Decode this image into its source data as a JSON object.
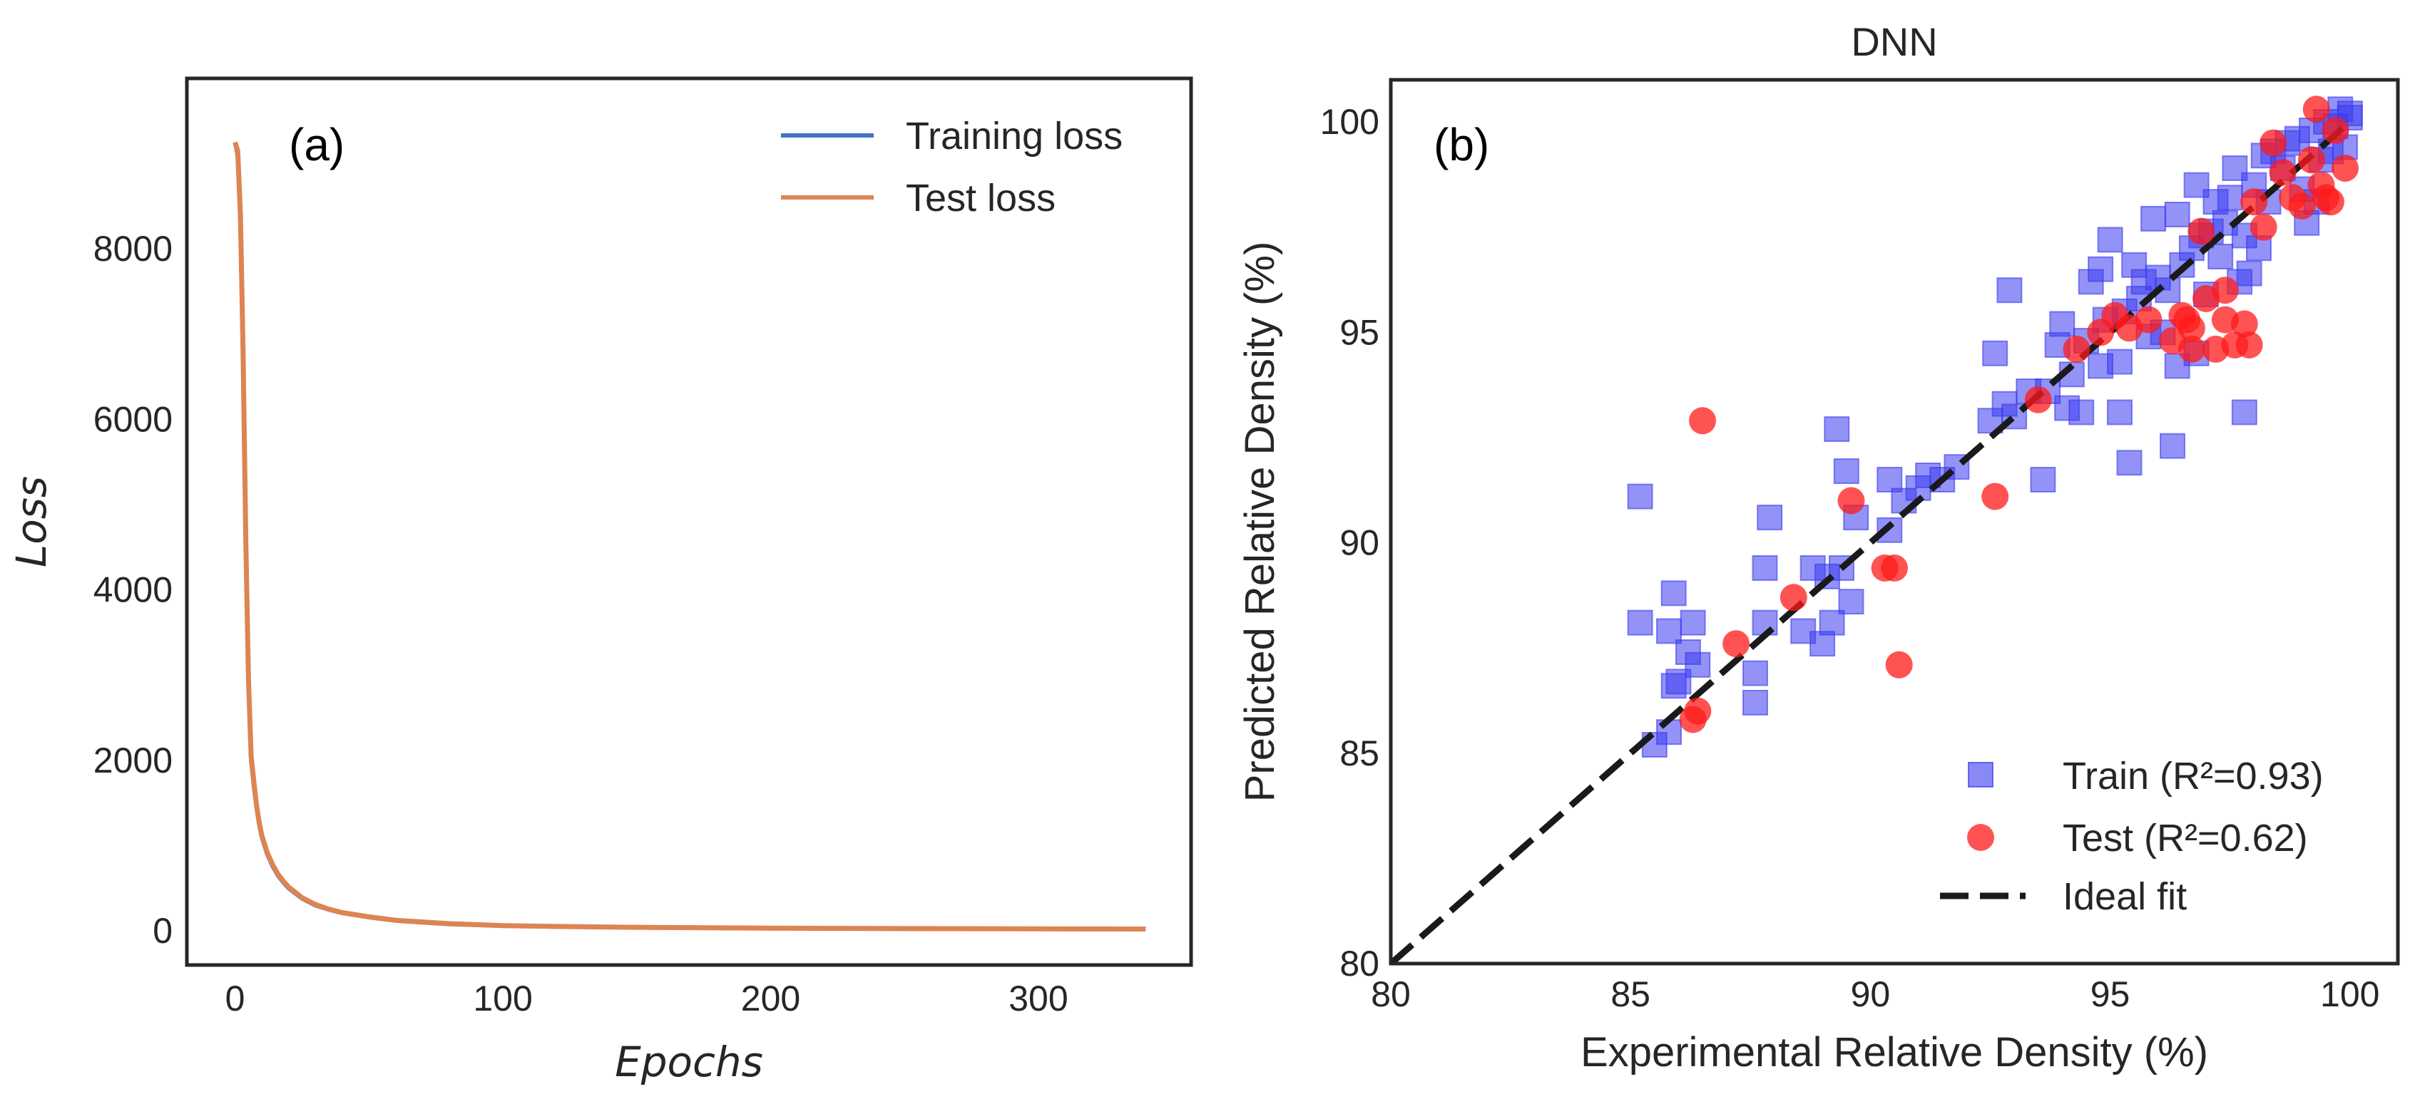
{
  "chart_data": [
    {
      "type": "line",
      "panel_label": "(a)",
      "xlabel": "Epochs",
      "ylabel": "Loss",
      "xlim": [
        -18,
        357
      ],
      "ylim": [
        -400,
        10000
      ],
      "xticks": [
        0,
        100,
        200,
        300
      ],
      "yticks": [
        0,
        2000,
        4000,
        6000,
        8000
      ],
      "grid": false,
      "legend_position": "top-right",
      "series": [
        {
          "name": "Training loss",
          "color": "#4472c4",
          "x": [
            0,
            1,
            2,
            3,
            4,
            5,
            6,
            7,
            8,
            9,
            10,
            12,
            14,
            16,
            18,
            20,
            25,
            30,
            35,
            40,
            50,
            60,
            70,
            80,
            100,
            120,
            150,
            200,
            250,
            300,
            340
          ],
          "y": [
            9250,
            9100,
            8300,
            6700,
            4500,
            2900,
            2000,
            1700,
            1450,
            1250,
            1100,
            900,
            760,
            650,
            570,
            500,
            380,
            300,
            250,
            210,
            160,
            120,
            100,
            80,
            60,
            50,
            40,
            30,
            25,
            22,
            20
          ]
        },
        {
          "name": "Test loss",
          "color": "#dd8452",
          "x": [
            0,
            1,
            2,
            3,
            4,
            5,
            6,
            7,
            8,
            9,
            10,
            12,
            14,
            16,
            18,
            20,
            25,
            30,
            35,
            40,
            50,
            60,
            70,
            80,
            100,
            120,
            150,
            200,
            250,
            300,
            340
          ],
          "y": [
            9250,
            9150,
            8400,
            6800,
            4600,
            2950,
            2050,
            1750,
            1480,
            1270,
            1120,
            920,
            780,
            665,
            585,
            515,
            390,
            310,
            255,
            215,
            165,
            125,
            105,
            85,
            62,
            52,
            42,
            32,
            27,
            24,
            22
          ]
        }
      ]
    },
    {
      "type": "scatter",
      "panel_label": "(b)",
      "title": "DNN",
      "xlabel": "Experimental Relative Density (%)",
      "ylabel": "Predicted Relative Density (%)",
      "xlim": [
        80,
        101
      ],
      "ylim": [
        80,
        101
      ],
      "xticks": [
        80,
        85,
        90,
        95,
        100
      ],
      "yticks": [
        80,
        85,
        90,
        95,
        100
      ],
      "grid": false,
      "legend_position": "bottom-right",
      "series": [
        {
          "name": "Train (R²=0.93)",
          "marker": "square",
          "color": "#3b3bf0",
          "points": [
            [
              85.2,
              91.1
            ],
            [
              85.2,
              88.1
            ],
            [
              85.5,
              85.2
            ],
            [
              85.8,
              85.5
            ],
            [
              85.8,
              87.9
            ],
            [
              85.9,
              88.8
            ],
            [
              85.9,
              86.6
            ],
            [
              86.0,
              86.7
            ],
            [
              86.2,
              87.4
            ],
            [
              86.3,
              88.1
            ],
            [
              86.4,
              87.1
            ],
            [
              87.6,
              86.9
            ],
            [
              87.6,
              86.2
            ],
            [
              87.8,
              89.4
            ],
            [
              87.8,
              88.1
            ],
            [
              87.9,
              90.6
            ],
            [
              88.6,
              87.9
            ],
            [
              88.8,
              89.4
            ],
            [
              89.0,
              87.6
            ],
            [
              89.1,
              89.2
            ],
            [
              89.2,
              88.1
            ],
            [
              89.3,
              92.7
            ],
            [
              89.4,
              89.4
            ],
            [
              89.5,
              91.7
            ],
            [
              89.6,
              88.6
            ],
            [
              89.7,
              90.6
            ],
            [
              90.4,
              91.5
            ],
            [
              90.4,
              90.3
            ],
            [
              90.7,
              91.0
            ],
            [
              91.0,
              91.3
            ],
            [
              91.2,
              91.6
            ],
            [
              91.5,
              91.5
            ],
            [
              91.8,
              91.8
            ],
            [
              92.5,
              92.9
            ],
            [
              92.6,
              94.5
            ],
            [
              92.8,
              93.3
            ],
            [
              92.9,
              96.0
            ],
            [
              93.0,
              93.0
            ],
            [
              93.3,
              93.6
            ],
            [
              93.6,
              91.5
            ],
            [
              93.7,
              93.6
            ],
            [
              93.9,
              94.7
            ],
            [
              94.0,
              95.2
            ],
            [
              94.1,
              93.2
            ],
            [
              94.2,
              94.0
            ],
            [
              94.4,
              93.1
            ],
            [
              94.5,
              94.8
            ],
            [
              94.6,
              96.2
            ],
            [
              94.8,
              96.5
            ],
            [
              94.8,
              94.2
            ],
            [
              94.9,
              95.3
            ],
            [
              95.0,
              97.2
            ],
            [
              95.2,
              93.1
            ],
            [
              95.2,
              94.3
            ],
            [
              95.3,
              95.5
            ],
            [
              95.4,
              91.9
            ],
            [
              95.5,
              96.6
            ],
            [
              95.6,
              95.8
            ],
            [
              95.7,
              96.2
            ],
            [
              95.8,
              94.9
            ],
            [
              95.9,
              97.7
            ],
            [
              96.0,
              96.3
            ],
            [
              96.1,
              95.0
            ],
            [
              96.2,
              96.0
            ],
            [
              96.3,
              92.3
            ],
            [
              96.4,
              94.2
            ],
            [
              96.4,
              97.8
            ],
            [
              96.5,
              96.6
            ],
            [
              96.7,
              97.0
            ],
            [
              96.8,
              98.5
            ],
            [
              96.8,
              94.5
            ],
            [
              96.9,
              97.3
            ],
            [
              97.0,
              95.9
            ],
            [
              97.1,
              97.4
            ],
            [
              97.2,
              98.1
            ],
            [
              97.3,
              96.8
            ],
            [
              97.4,
              97.6
            ],
            [
              97.5,
              98.2
            ],
            [
              97.6,
              98.9
            ],
            [
              97.7,
              96.2
            ],
            [
              97.8,
              97.3
            ],
            [
              97.8,
              93.1
            ],
            [
              97.9,
              96.4
            ],
            [
              98.0,
              98.5
            ],
            [
              98.1,
              97.0
            ],
            [
              98.2,
              99.2
            ],
            [
              98.3,
              98.1
            ],
            [
              98.4,
              99.3
            ],
            [
              98.6,
              98.9
            ],
            [
              98.7,
              99.5
            ],
            [
              98.9,
              99.6
            ],
            [
              99.0,
              98.4
            ],
            [
              99.1,
              97.6
            ],
            [
              99.2,
              99.8
            ],
            [
              99.3,
              98.1
            ],
            [
              99.4,
              99.1
            ],
            [
              99.5,
              100.0
            ],
            [
              99.6,
              99.3
            ],
            [
              99.7,
              99.9
            ],
            [
              99.8,
              100.3
            ],
            [
              99.9,
              99.4
            ],
            [
              100.0,
              100.1
            ],
            [
              100.0,
              100.2
            ]
          ]
        },
        {
          "name": "Test (R²=0.62)",
          "marker": "circle",
          "color": "#ff1a1a",
          "points": [
            [
              86.3,
              85.8
            ],
            [
              86.4,
              86.0
            ],
            [
              86.5,
              92.9
            ],
            [
              87.2,
              87.6
            ],
            [
              88.4,
              88.7
            ],
            [
              89.6,
              91.0
            ],
            [
              90.3,
              89.4
            ],
            [
              90.5,
              89.4
            ],
            [
              90.6,
              87.1
            ],
            [
              92.6,
              91.1
            ],
            [
              93.5,
              93.4
            ],
            [
              94.3,
              94.6
            ],
            [
              94.8,
              95.0
            ],
            [
              95.1,
              95.4
            ],
            [
              95.4,
              95.1
            ],
            [
              95.8,
              95.3
            ],
            [
              96.3,
              94.8
            ],
            [
              96.5,
              95.4
            ],
            [
              96.6,
              95.3
            ],
            [
              96.7,
              95.1
            ],
            [
              96.7,
              94.6
            ],
            [
              96.9,
              97.4
            ],
            [
              97.0,
              95.8
            ],
            [
              97.2,
              94.6
            ],
            [
              97.4,
              95.3
            ],
            [
              97.4,
              96.0
            ],
            [
              97.6,
              94.7
            ],
            [
              97.8,
              95.2
            ],
            [
              97.9,
              94.7
            ],
            [
              98.0,
              98.1
            ],
            [
              98.2,
              97.5
            ],
            [
              98.4,
              99.5
            ],
            [
              98.6,
              98.8
            ],
            [
              98.8,
              98.2
            ],
            [
              99.0,
              98.0
            ],
            [
              99.2,
              99.1
            ],
            [
              99.3,
              100.3
            ],
            [
              99.4,
              98.5
            ],
            [
              99.5,
              98.2
            ],
            [
              99.6,
              98.1
            ],
            [
              99.7,
              99.8
            ],
            [
              99.9,
              98.9
            ]
          ]
        },
        {
          "name": "Ideal fit",
          "style": "dashed",
          "color": "#1a1a1a",
          "x": [
            80,
            100
          ],
          "y": [
            80,
            100
          ]
        }
      ]
    }
  ]
}
